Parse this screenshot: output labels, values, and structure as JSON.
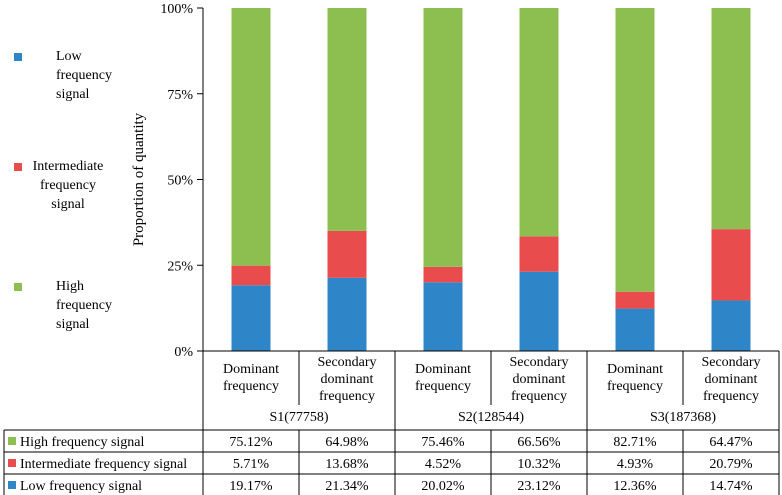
{
  "chart_data": {
    "type": "bar",
    "stacked": true,
    "ylabel": "Proportion of quantity",
    "ylim": [
      0,
      100
    ],
    "yticks": [
      "0%",
      "25%",
      "50%",
      "75%",
      "100%"
    ],
    "groups": [
      {
        "label": "S1(77758)",
        "bars": [
          "Dominant frequency",
          "Secondary dominant frequency"
        ]
      },
      {
        "label": "S2(128544)",
        "bars": [
          "Dominant frequency",
          "Secondary dominant frequency"
        ]
      },
      {
        "label": "S3(187368)",
        "bars": [
          "Dominant frequency",
          "Secondary dominant frequency"
        ]
      }
    ],
    "bar_label_lines": {
      "Dominant frequency": [
        "Dominant",
        "frequency"
      ],
      "Secondary dominant frequency": [
        "Secondary",
        "dominant",
        "frequency"
      ]
    },
    "series": [
      {
        "name": "Low frequency signal",
        "legend_lines": [
          "Low",
          "frequency",
          "signal"
        ],
        "color": "#2e86c8",
        "values": [
          19.17,
          21.34,
          20.02,
          23.12,
          12.36,
          14.74
        ],
        "labels": [
          "19.17%",
          "21.34%",
          "20.02%",
          "23.12%",
          "12.36%",
          "14.74%"
        ]
      },
      {
        "name": "Intermediate frequency signal",
        "legend_lines": [
          "Intermediate",
          "frequency",
          "signal"
        ],
        "color": "#e84c4c",
        "values": [
          5.71,
          13.68,
          4.52,
          10.32,
          4.93,
          20.79
        ],
        "labels": [
          "5.71%",
          "13.68%",
          "4.52%",
          "10.32%",
          "4.93%",
          "20.79%"
        ]
      },
      {
        "name": "High frequency signal",
        "legend_lines": [
          "High",
          "frequency",
          "signal"
        ],
        "color": "#8cbf4f",
        "values": [
          75.12,
          64.98,
          75.46,
          66.56,
          82.71,
          64.47
        ],
        "labels": [
          "75.12%",
          "64.98%",
          "75.46%",
          "66.56%",
          "82.71%",
          "64.47%"
        ]
      }
    ],
    "table_row_order": [
      "High frequency signal",
      "Intermediate frequency signal",
      "Low frequency signal"
    ],
    "legend": "left"
  }
}
